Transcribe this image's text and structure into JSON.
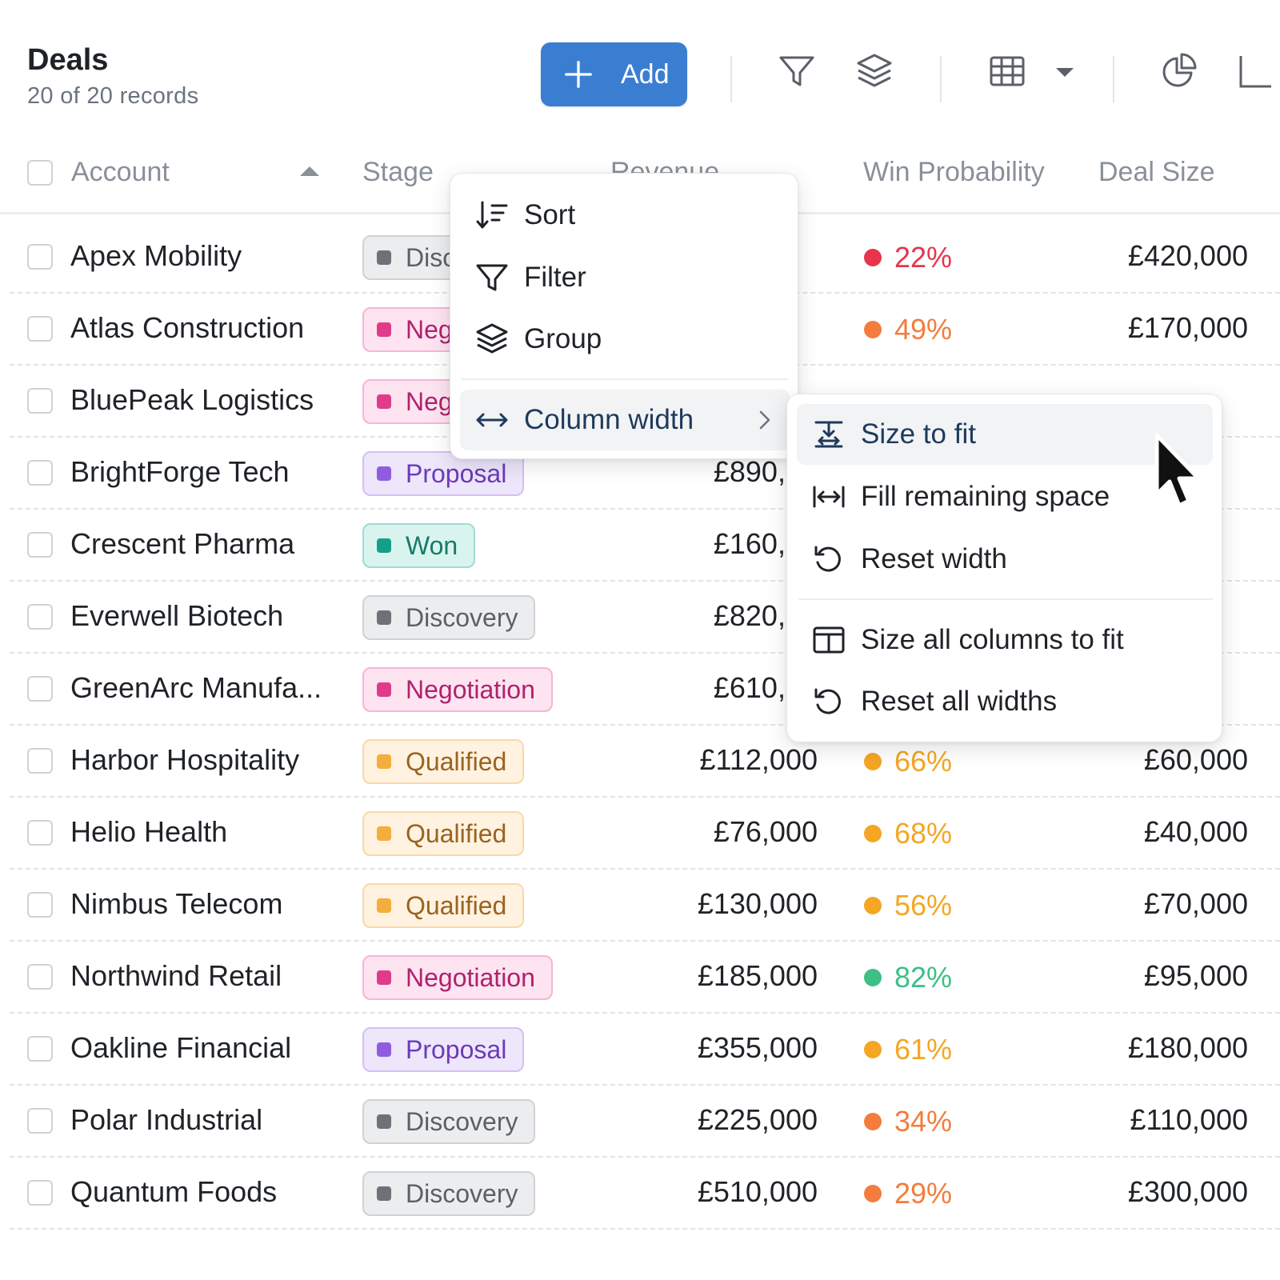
{
  "header": {
    "title": "Deals",
    "subtitle": "20 of 20 records",
    "add_label": "Add"
  },
  "toolbar_icons": [
    "plus-icon",
    "filter-icon",
    "layers-icon",
    "grid-icon",
    "caret-down-icon",
    "pie-chart-icon"
  ],
  "columns": {
    "account": "Account",
    "stage": "Stage",
    "revenue": "Revenue",
    "win_probability": "Win Probability",
    "deal_size": "Deal Size"
  },
  "rows": [
    {
      "account": "Apex Mobility",
      "stage": "Discovery",
      "revenue": "",
      "win": "22%",
      "deal": "£420,000",
      "win_color": "#e8344e"
    },
    {
      "account": "Atlas Construction",
      "stage": "Negotiation",
      "revenue": "",
      "win": "49%",
      "deal": "£170,000",
      "win_color": "#f47c3c"
    },
    {
      "account": "BluePeak Logistics",
      "stage": "Negotiation",
      "revenue": "",
      "win": "",
      "deal": "",
      "win_color": ""
    },
    {
      "account": "BrightForge Tech",
      "stage": "Proposal",
      "revenue": "£890,00",
      "win": "",
      "deal": "",
      "win_color": ""
    },
    {
      "account": "Crescent Pharma",
      "stage": "Won",
      "revenue": "£160,00",
      "win": "",
      "deal": "",
      "win_color": ""
    },
    {
      "account": "Everwell Biotech",
      "stage": "Discovery",
      "revenue": "£820,00",
      "win": "",
      "deal": "",
      "win_color": ""
    },
    {
      "account": "GreenArc Manufa...",
      "stage": "Negotiation",
      "revenue": "£610,00",
      "win": "",
      "deal": "",
      "win_color": ""
    },
    {
      "account": "Harbor Hospitality",
      "stage": "Qualified",
      "revenue": "£112,000",
      "win": "66%",
      "deal": "£60,000",
      "win_color": "#f5a623"
    },
    {
      "account": "Helio Health",
      "stage": "Qualified",
      "revenue": "£76,000",
      "win": "68%",
      "deal": "£40,000",
      "win_color": "#f5a623"
    },
    {
      "account": "Nimbus Telecom",
      "stage": "Qualified",
      "revenue": "£130,000",
      "win": "56%",
      "deal": "£70,000",
      "win_color": "#f5a623"
    },
    {
      "account": "Northwind Retail",
      "stage": "Negotiation",
      "revenue": "£185,000",
      "win": "82%",
      "deal": "£95,000",
      "win_color": "#3dbf86"
    },
    {
      "account": "Oakline Financial",
      "stage": "Proposal",
      "revenue": "£355,000",
      "win": "61%",
      "deal": "£180,000",
      "win_color": "#f5a623"
    },
    {
      "account": "Polar Industrial",
      "stage": "Discovery",
      "revenue": "£225,000",
      "win": "34%",
      "deal": "£110,000",
      "win_color": "#f47c3c"
    },
    {
      "account": "Quantum Foods",
      "stage": "Discovery",
      "revenue": "£510,000",
      "win": "29%",
      "deal": "£300,000",
      "win_color": "#f47c3c"
    }
  ],
  "column_menu": {
    "sort": "Sort",
    "filter": "Filter",
    "group": "Group",
    "column_width": "Column width"
  },
  "width_submenu": {
    "size_to_fit": "Size to fit",
    "fill_remaining": "Fill remaining space",
    "reset_width": "Reset width",
    "size_all": "Size all columns to fit",
    "reset_all": "Reset all widths"
  },
  "colors": {
    "accent": "#3a7ed1",
    "win_red": "#e8344e",
    "win_orange": "#f47c3c",
    "win_amber": "#f5a623",
    "win_green": "#3dbf86"
  }
}
